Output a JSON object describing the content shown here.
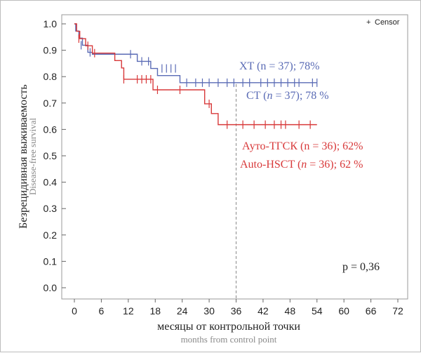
{
  "chart_data": {
    "type": "line",
    "subtype": "kaplan-meier",
    "ylabel": "Безрецидивная выживаемость",
    "ylabel_en": "Disease-free survival",
    "xlabel": "месяцы от контрольной точки",
    "xlabel_en": "months from control point",
    "xlim": [
      0,
      72
    ],
    "ylim": [
      0.0,
      1.0
    ],
    "xticks": [
      "0",
      "6",
      "12",
      "18",
      "24",
      "30",
      "36",
      "42",
      "48",
      "54",
      "60",
      "66",
      "72"
    ],
    "yticks": [
      "0.0",
      "0.1",
      "0.2",
      "0.3",
      "0.4",
      "0.5",
      "0.6",
      "0.7",
      "0.8",
      "0.9",
      "1.0"
    ],
    "grid": false,
    "legend": {
      "position": "top-right",
      "symbol": "+",
      "label": "Censor"
    },
    "reference_line": {
      "x": 36,
      "style": "dashed"
    },
    "p_value_text": "p = 0,36",
    "series": [
      {
        "name": "XT",
        "color": "#5a6bb5",
        "labels": [
          {
            "parts": [
              {
                "t": "XT (n = 37); 78%",
                "i": false
              }
            ]
          },
          {
            "parts": [
              {
                "t": "CT (",
                "i": false
              },
              {
                "t": "n",
                "i": true
              },
              {
                "t": " = 37); 78 %",
                "i": false
              }
            ]
          }
        ],
        "steps": [
          [
            0,
            1.0
          ],
          [
            0.3,
            0.973
          ],
          [
            1.0,
            0.946
          ],
          [
            1.8,
            0.919
          ],
          [
            3.0,
            0.892
          ],
          [
            4.0,
            0.885
          ],
          [
            14.0,
            0.858
          ],
          [
            17.0,
            0.831
          ],
          [
            18.5,
            0.804
          ],
          [
            23.5,
            0.777
          ]
        ],
        "end_x": 54,
        "censors": [
          [
            1.5,
            0.919
          ],
          [
            3.5,
            0.892
          ],
          [
            12.5,
            0.885
          ],
          [
            15.0,
            0.858
          ],
          [
            16.5,
            0.858
          ],
          [
            19.5,
            0.831
          ],
          [
            20.5,
            0.831
          ],
          [
            21.5,
            0.831
          ],
          [
            22.5,
            0.831
          ],
          [
            25.0,
            0.777
          ],
          [
            27.0,
            0.777
          ],
          [
            28.5,
            0.777
          ],
          [
            30.0,
            0.777
          ],
          [
            32.0,
            0.777
          ],
          [
            34.0,
            0.777
          ],
          [
            35.5,
            0.777
          ],
          [
            37.5,
            0.777
          ],
          [
            39.0,
            0.777
          ],
          [
            41.5,
            0.777
          ],
          [
            43.0,
            0.777
          ],
          [
            44.5,
            0.777
          ],
          [
            46.0,
            0.777
          ],
          [
            47.5,
            0.777
          ],
          [
            49.0,
            0.777
          ],
          [
            50.0,
            0.777
          ],
          [
            53.0,
            0.777
          ],
          [
            54.0,
            0.777
          ]
        ]
      },
      {
        "name": "Ауто-ТГСК",
        "color": "#d8393a",
        "labels": [
          {
            "parts": [
              {
                "t": "Ауто-ТГСК (n = 36); 62%",
                "i": false
              }
            ]
          },
          {
            "parts": [
              {
                "t": "Auto-HSCT (",
                "i": false
              },
              {
                "t": "n",
                "i": true
              },
              {
                "t": " = 36); 62 %",
                "i": false
              }
            ]
          }
        ],
        "steps": [
          [
            0,
            1.0
          ],
          [
            0.5,
            0.972
          ],
          [
            1.2,
            0.944
          ],
          [
            2.5,
            0.917
          ],
          [
            4.0,
            0.889
          ],
          [
            9.0,
            0.861
          ],
          [
            10.5,
            0.833
          ],
          [
            11.0,
            0.79
          ],
          [
            17.5,
            0.75
          ],
          [
            29.0,
            0.697
          ],
          [
            30.5,
            0.66
          ],
          [
            32.0,
            0.618
          ]
        ],
        "end_x": 54,
        "censors": [
          [
            1.0,
            0.944
          ],
          [
            3.0,
            0.917
          ],
          [
            4.5,
            0.889
          ],
          [
            11.0,
            0.79
          ],
          [
            14.0,
            0.79
          ],
          [
            15.0,
            0.79
          ],
          [
            16.0,
            0.79
          ],
          [
            17.0,
            0.79
          ],
          [
            18.5,
            0.75
          ],
          [
            23.5,
            0.75
          ],
          [
            30.0,
            0.697
          ],
          [
            34.0,
            0.618
          ],
          [
            37.5,
            0.618
          ],
          [
            40.0,
            0.618
          ],
          [
            42.5,
            0.618
          ],
          [
            44.5,
            0.618
          ],
          [
            46.0,
            0.618
          ],
          [
            47.0,
            0.618
          ],
          [
            50.0,
            0.618
          ],
          [
            52.5,
            0.618
          ]
        ]
      }
    ]
  }
}
